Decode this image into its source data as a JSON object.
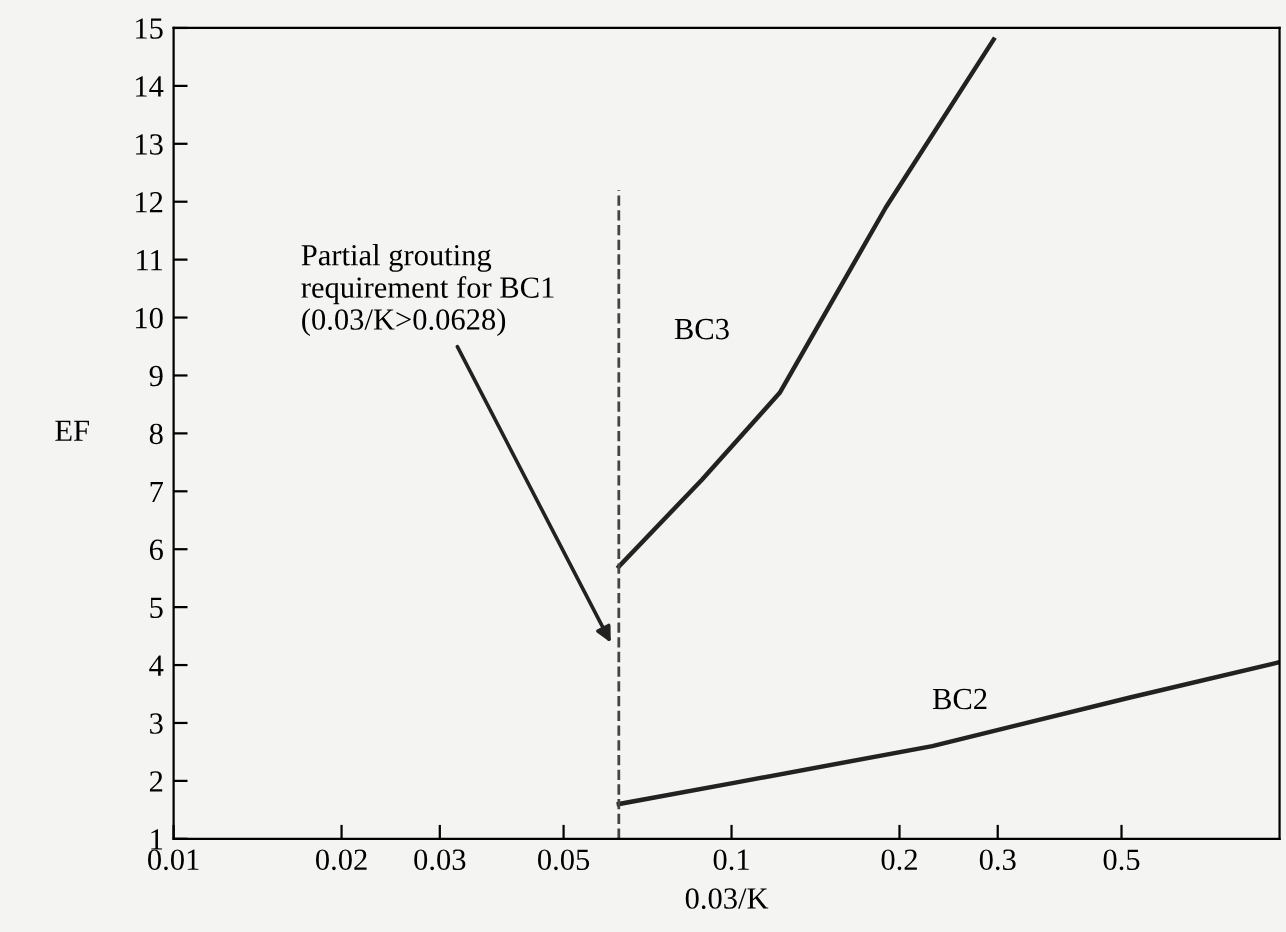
{
  "chart_data": {
    "type": "line",
    "xlabel": "0.03/K",
    "ylabel": "EF",
    "log": "x",
    "xlim": [
      0.01,
      0.96
    ],
    "ylim": [
      1,
      15
    ],
    "xticks": [
      0.01,
      0.02,
      0.03,
      0.05,
      0.1,
      0.2,
      0.3,
      0.5
    ],
    "yticks": [
      1,
      2,
      3,
      4,
      5,
      6,
      7,
      8,
      9,
      10,
      11,
      12,
      13,
      14,
      15
    ],
    "grid": false,
    "legend": false,
    "marker": "none",
    "line_style": "solid",
    "series": [
      {
        "name": "BC3",
        "color": "#222222",
        "x": [
          0.0628,
          0.0885,
          0.122,
          0.189,
          0.295
        ],
        "values": [
          5.7,
          7.2,
          8.7,
          11.9,
          14.8
        ]
      },
      {
        "name": "BC2",
        "color": "#222222",
        "x": [
          0.0628,
          0.1016,
          0.229,
          0.518,
          0.96
        ],
        "values": [
          1.6,
          1.97,
          2.6,
          3.44,
          4.05
        ]
      }
    ],
    "ref_lines": [
      {
        "axis": "x",
        "value": 0.0628,
        "line_style": "dashed",
        "color": "#444444"
      }
    ],
    "annotations": [
      {
        "text": "Partial grouting\nrequirement for BC1\n(0.03/K>0.0628)",
        "x": 0.0614,
        "y": 4.3
      }
    ]
  }
}
